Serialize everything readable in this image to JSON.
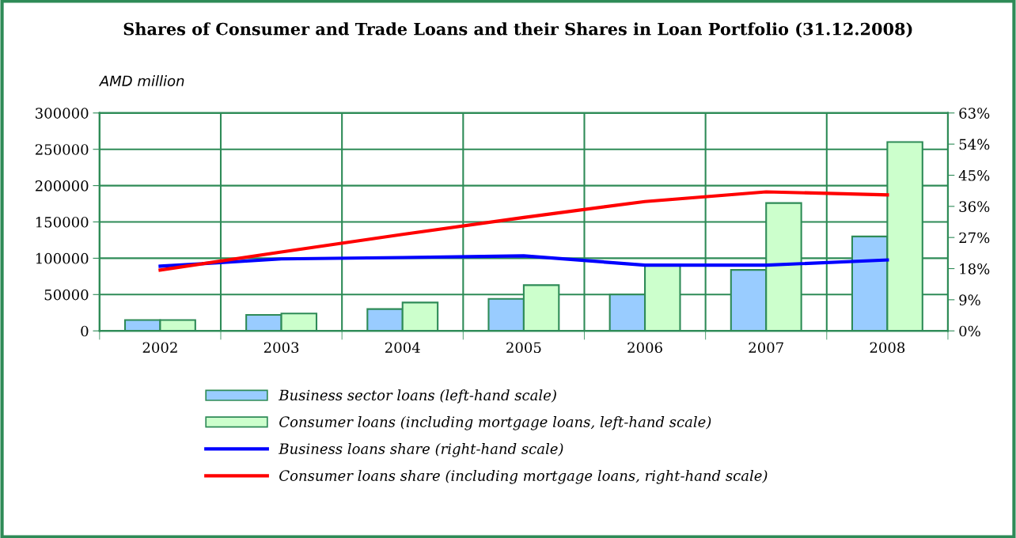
{
  "chart_data": {
    "type": "bar",
    "title": "Shares of Consumer and Trade Loans and their Shares in Loan Portfolio (31.12.2008)",
    "ylabel": "AMD million",
    "categories": [
      "2002",
      "2003",
      "2004",
      "2005",
      "2006",
      "2007",
      "2008"
    ],
    "series": [
      {
        "name": "Business sector loans (left-hand scale)",
        "color": "#99ccff",
        "values": [
          15000,
          22000,
          30000,
          44000,
          50000,
          84000,
          130000
        ]
      },
      {
        "name": "Consumer loans (including mortgage loans, left-hand scale)",
        "color": "#ccffcc",
        "values": [
          15000,
          24000,
          39000,
          63000,
          91000,
          176000,
          260000
        ]
      },
      {
        "name": "Business loans share (right-hand scale)",
        "type": "line",
        "axis": "y2",
        "color": "#0000ff",
        "values": [
          18.7,
          20.8,
          21.2,
          21.7,
          19.0,
          19.0,
          20.5
        ]
      },
      {
        "name": "Consumer loans share (including mortgage loans, right-hand scale)",
        "type": "line",
        "axis": "y2",
        "color": "#ff0000",
        "values": [
          17.6,
          22.8,
          27.9,
          32.8,
          37.4,
          40.2,
          39.3
        ]
      }
    ],
    "ylim": [
      0,
      300000
    ],
    "yticks": [
      0,
      50000,
      100000,
      150000,
      200000,
      250000,
      300000
    ],
    "y2lim": [
      0,
      63
    ],
    "y2ticks": [
      {
        "value": 0,
        "label": "0%"
      },
      {
        "value": 9,
        "label": "9%"
      },
      {
        "value": 18,
        "label": "18%"
      },
      {
        "value": 27,
        "label": "27%"
      },
      {
        "value": 36,
        "label": "36%"
      },
      {
        "value": 45,
        "label": "45%"
      },
      {
        "value": 54,
        "label": "54%"
      },
      {
        "value": 63,
        "label": "63%"
      }
    ],
    "grid": true,
    "legend": "bottom"
  }
}
